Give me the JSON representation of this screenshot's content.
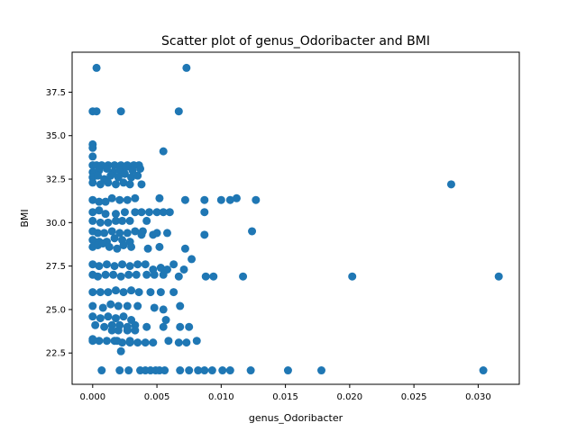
{
  "chart_data": {
    "type": "scatter",
    "title": "Scatter plot of genus_Odoribacter and BMI",
    "xlabel": "genus_Odoribacter",
    "ylabel": "BMI",
    "xlim": [
      -0.0016,
      0.0332
    ],
    "ylim": [
      20.7,
      39.8
    ],
    "xticks": [
      0.0,
      0.005,
      0.01,
      0.015,
      0.02,
      0.025,
      0.03
    ],
    "xtick_labels": [
      "0.000",
      "0.005",
      "0.010",
      "0.015",
      "0.020",
      "0.025",
      "0.030"
    ],
    "yticks": [
      22.5,
      25.0,
      27.5,
      30.0,
      32.5,
      35.0,
      37.5
    ],
    "ytick_labels": [
      "22.5",
      "25.0",
      "27.5",
      "30.0",
      "32.5",
      "35.0",
      "37.5"
    ],
    "grid": false,
    "marker_color": "#1f77b4",
    "x": [
      0.0003,
      0.0073,
      0.0,
      0.0003,
      0.0022,
      0.0067,
      0.0,
      0.0,
      0.0,
      0.0055,
      0.0,
      0.0003,
      0.0007,
      0.0012,
      0.0017,
      0.0022,
      0.0027,
      0.0032,
      0.0036,
      0.0,
      0.0005,
      0.0011,
      0.0016,
      0.0021,
      0.0026,
      0.0031,
      0.0037,
      0.0,
      0.0004,
      0.0009,
      0.0014,
      0.002,
      0.0025,
      0.003,
      0.0035,
      0.0,
      0.0006,
      0.0012,
      0.0018,
      0.0024,
      0.0029,
      0.0038,
      0.0279,
      0.0,
      0.0005,
      0.001,
      0.0015,
      0.0021,
      0.0027,
      0.0033,
      0.0052,
      0.0072,
      0.0087,
      0.01,
      0.0107,
      0.0112,
      0.0127,
      0.0,
      0.0005,
      0.001,
      0.0018,
      0.0025,
      0.0033,
      0.0038,
      0.0044,
      0.005,
      0.0055,
      0.006,
      0.0087,
      0.0,
      0.0006,
      0.0012,
      0.0018,
      0.0023,
      0.0029,
      0.0042,
      0.0,
      0.0004,
      0.0009,
      0.0015,
      0.0021,
      0.0027,
      0.0033,
      0.0039,
      0.0124,
      0.0,
      0.0005,
      0.0011,
      0.0017,
      0.0023,
      0.0029,
      0.0038,
      0.0047,
      0.005,
      0.0058,
      0.0087,
      0.0,
      0.0004,
      0.0008,
      0.0013,
      0.0019,
      0.0024,
      0.003,
      0.0043,
      0.0052,
      0.0072,
      0.0,
      0.0005,
      0.0011,
      0.0017,
      0.0023,
      0.0029,
      0.0035,
      0.0041,
      0.0047,
      0.0053,
      0.0058,
      0.0063,
      0.0071,
      0.0077,
      0.0,
      0.0004,
      0.001,
      0.0016,
      0.0022,
      0.0028,
      0.0034,
      0.0042,
      0.0048,
      0.0055,
      0.0067,
      0.0088,
      0.0094,
      0.0117,
      0.0202,
      0.0316,
      0.0,
      0.0006,
      0.0012,
      0.0018,
      0.0024,
      0.003,
      0.0036,
      0.0045,
      0.0053,
      0.0063,
      0.0,
      0.0008,
      0.0014,
      0.002,
      0.0027,
      0.0035,
      0.0048,
      0.0055,
      0.0068,
      0.0,
      0.0006,
      0.0012,
      0.0018,
      0.0024,
      0.003,
      0.0057,
      0.0002,
      0.0009,
      0.0015,
      0.0021,
      0.0027,
      0.0033,
      0.0042,
      0.0055,
      0.0068,
      0.0075,
      0.0,
      0.0005,
      0.0011,
      0.0017,
      0.0023,
      0.0029,
      0.0035,
      0.0041,
      0.0047,
      0.0067,
      0.0073,
      0.0015,
      0.002,
      0.0027,
      0.0033,
      0.0059,
      0.0081,
      0.0,
      0.0019,
      0.0029,
      0.0022,
      0.0007,
      0.0021,
      0.0028,
      0.0037,
      0.0041,
      0.0045,
      0.0049,
      0.0052,
      0.0056,
      0.0068,
      0.0075,
      0.0082,
      0.0087,
      0.0093,
      0.0101,
      0.0107,
      0.0123,
      0.0152,
      0.0178,
      0.0304
    ],
    "y": [
      38.9,
      38.9,
      36.4,
      36.4,
      36.4,
      36.4,
      34.5,
      34.3,
      33.8,
      34.1,
      33.3,
      33.3,
      33.3,
      33.3,
      33.3,
      33.3,
      33.3,
      33.3,
      33.3,
      32.9,
      33.0,
      33.1,
      32.9,
      33.0,
      33.2,
      33.0,
      33.1,
      32.6,
      32.7,
      32.5,
      32.7,
      32.6,
      32.8,
      32.6,
      32.7,
      32.3,
      32.2,
      32.3,
      32.2,
      32.3,
      32.2,
      32.2,
      32.2,
      31.3,
      31.2,
      31.2,
      31.4,
      31.3,
      31.3,
      31.4,
      31.4,
      31.3,
      31.3,
      31.3,
      31.3,
      31.4,
      31.3,
      30.6,
      30.7,
      30.5,
      30.5,
      30.6,
      30.6,
      30.6,
      30.6,
      30.6,
      30.6,
      30.6,
      30.6,
      30.1,
      30.0,
      30.0,
      30.1,
      30.1,
      30.1,
      30.1,
      29.5,
      29.4,
      29.4,
      29.5,
      29.4,
      29.4,
      29.5,
      29.5,
      29.5,
      29.0,
      28.9,
      28.9,
      29.1,
      29.0,
      28.9,
      29.3,
      29.3,
      29.4,
      29.4,
      29.3,
      28.6,
      28.7,
      28.8,
      28.6,
      28.5,
      28.7,
      28.6,
      28.5,
      28.6,
      28.5,
      27.6,
      27.5,
      27.6,
      27.5,
      27.6,
      27.5,
      27.6,
      27.6,
      27.3,
      27.4,
      27.3,
      27.6,
      27.3,
      27.9,
      27.0,
      26.9,
      27.0,
      27.0,
      26.9,
      27.0,
      27.0,
      27.0,
      27.0,
      27.0,
      26.9,
      26.9,
      26.9,
      26.9,
      26.9,
      26.9,
      26.0,
      26.0,
      26.0,
      26.1,
      26.0,
      26.1,
      26.0,
      26.0,
      26.0,
      26.0,
      25.2,
      25.1,
      25.3,
      25.2,
      25.2,
      25.2,
      25.1,
      25.0,
      25.2,
      24.6,
      24.5,
      24.6,
      24.5,
      24.6,
      24.4,
      24.4,
      24.1,
      24.0,
      24.1,
      24.1,
      24.0,
      24.1,
      24.0,
      24.0,
      24.0,
      24.0,
      23.3,
      23.2,
      23.2,
      23.2,
      23.1,
      23.1,
      23.1,
      23.1,
      23.1,
      23.1,
      23.1,
      23.8,
      23.8,
      23.8,
      23.8,
      23.2,
      23.2,
      23.2,
      23.2,
      23.2,
      22.6,
      21.5,
      21.5,
      21.5,
      21.5,
      21.5,
      21.5,
      21.5,
      21.5,
      21.5,
      21.5,
      21.5,
      21.5,
      21.5,
      21.5,
      21.5,
      21.5,
      21.5,
      21.5,
      21.5,
      21.5
    ]
  }
}
